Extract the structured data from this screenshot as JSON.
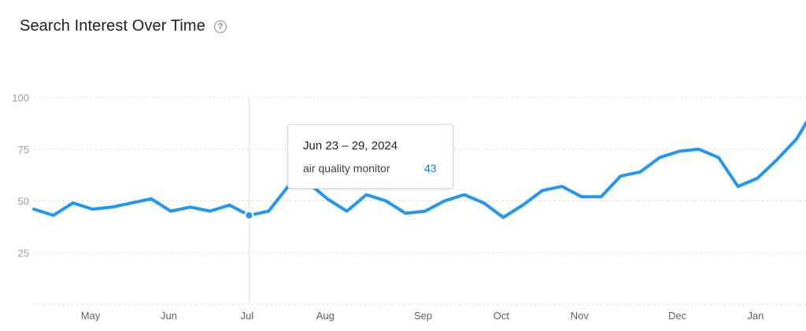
{
  "header": {
    "title": "Search Interest Over Time",
    "help_icon": "help-circle-icon"
  },
  "tooltip": {
    "date": "Jun 23 – 29, 2024",
    "term": "air quality monitor",
    "value": "43"
  },
  "colors": {
    "line": "#2196f3",
    "grid": "#e0e0e0",
    "axis_text": "#9aa0a6",
    "tick_text": "#5f6368"
  },
  "chart_data": {
    "type": "line",
    "title": "Search Interest Over Time",
    "xlabel": "",
    "ylabel": "",
    "ylim": [
      0,
      100
    ],
    "yticks": [
      25,
      50,
      75,
      100
    ],
    "x_tick_labels": [
      "May",
      "Jun",
      "Jul",
      "Aug",
      "Sep",
      "Oct",
      "Nov",
      "Dec",
      "Jan"
    ],
    "x_tick_positions": [
      2.9,
      6.9,
      10.9,
      14.9,
      19.9,
      23.9,
      27.9,
      32.9,
      36.9
    ],
    "hover_index": 11,
    "grid": true,
    "legend": "none",
    "series": [
      {
        "name": "air quality monitor",
        "values": [
          46,
          43,
          49,
          46,
          47,
          49,
          51,
          45,
          47,
          45,
          48,
          43,
          45,
          57,
          59,
          51,
          45,
          53,
          50,
          44,
          45,
          50,
          53,
          49,
          42,
          48,
          55,
          57,
          52,
          52,
          62,
          64,
          71,
          74,
          75,
          71,
          57,
          61,
          70,
          80,
          96
        ]
      }
    ]
  }
}
